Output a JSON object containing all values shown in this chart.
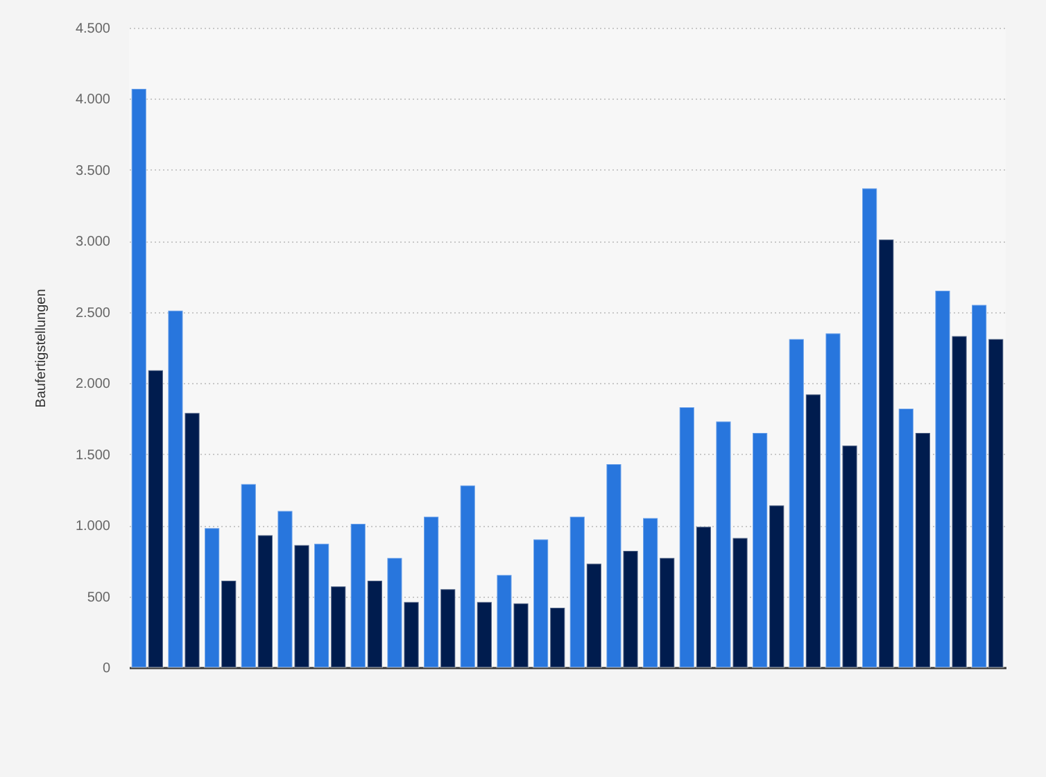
{
  "chart_data": {
    "type": "bar",
    "ylabel": "Baufertigstellungen",
    "categories": [
      null,
      null,
      null,
      null,
      null,
      null,
      null,
      null,
      null,
      null,
      null,
      null,
      null,
      null,
      null,
      null,
      null,
      null,
      null,
      null,
      null,
      null,
      null,
      null
    ],
    "series": [
      {
        "color": "#2876dd",
        "values": [
          4070,
          2510,
          980,
          1290,
          1100,
          870,
          1010,
          770,
          1060,
          1280,
          650,
          900,
          1060,
          1430,
          1050,
          1830,
          1730,
          1650,
          2310,
          2350,
          3370,
          1820,
          2650,
          2550
        ]
      },
      {
        "color": "#001c4e",
        "values": [
          2090,
          1790,
          610,
          930,
          860,
          570,
          610,
          460,
          550,
          460,
          450,
          420,
          730,
          820,
          770,
          990,
          910,
          1140,
          1920,
          1560,
          3010,
          1650,
          2330,
          2310
        ]
      }
    ],
    "ylim": [
      0,
      4500
    ],
    "yticks": [
      {
        "value": 0,
        "label": "0"
      },
      {
        "value": 500,
        "label": "500"
      },
      {
        "value": 1000,
        "label": "1.000"
      },
      {
        "value": 1500,
        "label": "1.500"
      },
      {
        "value": 2000,
        "label": "2.000"
      },
      {
        "value": 2500,
        "label": "2.500"
      },
      {
        "value": 3000,
        "label": "3.000"
      },
      {
        "value": 3500,
        "label": "3.500"
      },
      {
        "value": 4000,
        "label": "4.000"
      },
      {
        "value": 4500,
        "label": "4.500"
      }
    ],
    "grid": "y",
    "tick_labels": "y"
  }
}
